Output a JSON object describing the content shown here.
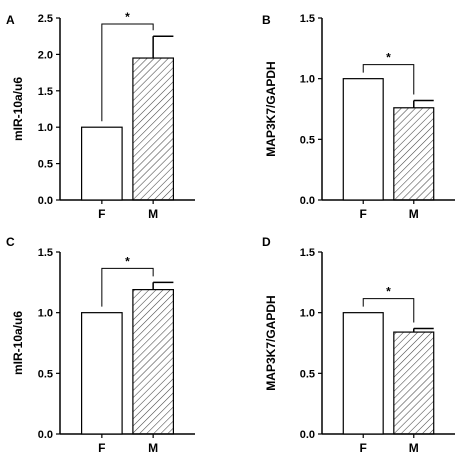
{
  "chart_data": [
    {
      "panel": "A",
      "type": "bar",
      "categories": [
        "F",
        "M"
      ],
      "values": [
        1.0,
        1.95
      ],
      "errors": [
        0,
        0.3
      ],
      "ylabel": "mIR-10a/u6",
      "ylim": [
        0,
        2.5
      ],
      "yticks": [
        "0.0",
        "0.5",
        "1.0",
        "1.5",
        "2.0",
        "2.5"
      ],
      "significance": "*",
      "bar_fills": [
        "white",
        "hatched"
      ]
    },
    {
      "panel": "B",
      "type": "bar",
      "categories": [
        "F",
        "M"
      ],
      "values": [
        1.0,
        0.76
      ],
      "errors": [
        0,
        0.06
      ],
      "ylabel": "MAP3K7/GAPDH",
      "ylim": [
        0,
        1.5
      ],
      "yticks": [
        "0.0",
        "0.5",
        "1.0",
        "1.5"
      ],
      "significance": "*",
      "bar_fills": [
        "white",
        "hatched"
      ]
    },
    {
      "panel": "C",
      "type": "bar",
      "categories": [
        "F",
        "M"
      ],
      "values": [
        1.0,
        1.19
      ],
      "errors": [
        0,
        0.06
      ],
      "ylabel": "mIR-10a/u6",
      "ylim": [
        0,
        1.5
      ],
      "yticks": [
        "0.0",
        "0.5",
        "1.0",
        "1.5"
      ],
      "significance": "*",
      "bar_fills": [
        "white",
        "hatched"
      ]
    },
    {
      "panel": "D",
      "type": "bar",
      "categories": [
        "F",
        "M"
      ],
      "values": [
        1.0,
        0.84
      ],
      "errors": [
        0,
        0.03
      ],
      "ylabel": "MAP3K7/GAPDH",
      "ylim": [
        0,
        1.5
      ],
      "yticks": [
        "0.0",
        "0.5",
        "1.0",
        "1.5"
      ],
      "significance": "*",
      "bar_fills": [
        "white",
        "hatched"
      ]
    }
  ]
}
